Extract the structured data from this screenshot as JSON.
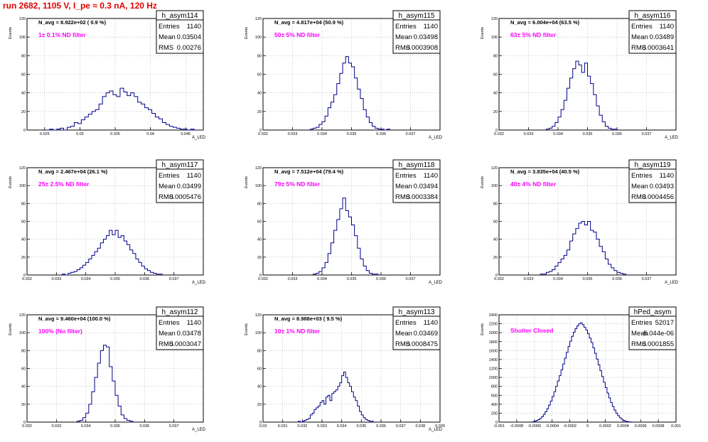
{
  "page": {
    "run_title": "run 2682,  1105 V, I_pe ≈ 0.3 nA, 120 Hz"
  },
  "colors": {
    "histogram_line": "#00008b",
    "label_magenta": "#ff00ff",
    "run_title_red": "#e00000",
    "grid": "#aaaaaa"
  },
  "chart_data": [
    {
      "type": "bar",
      "name": "h_asym114",
      "ylabel": "Events",
      "xlabel": "A_LED",
      "stats": {
        "entries_label": "Entries",
        "entries": "1140",
        "mean_label": "Mean",
        "mean": "0.03504",
        "rms_label": "RMS",
        "rms": "0.00276"
      },
      "n_avg_text": "N_avg = 8.922e+02 ( 0.9 %)",
      "filter_label": "1± 0.1% ND filter",
      "grid": true,
      "xlim": [
        0.0225,
        0.0475
      ],
      "ylim": [
        0,
        120
      ],
      "xticks": [
        0.025,
        0.03,
        0.035,
        0.04,
        0.045
      ],
      "xtick_labels": [
        "0.025",
        "0.03",
        "0.035",
        "0.04",
        "0.045"
      ],
      "yticks": [
        0,
        20,
        40,
        60,
        80,
        100,
        120
      ],
      "ytick_labels": [
        "0",
        "20",
        "40",
        "60",
        "80",
        "100",
        "120"
      ],
      "bins": {
        "start": 0.0252,
        "width": 0.0005,
        "values": [
          0,
          1,
          0,
          1,
          2,
          0,
          3,
          4,
          8,
          7,
          11,
          14,
          17,
          20,
          22,
          28,
          36,
          40,
          42,
          38,
          36,
          45,
          41,
          37,
          40,
          36,
          30,
          28,
          24,
          22,
          18,
          14,
          12,
          8,
          6,
          4,
          3,
          2,
          1,
          1,
          0,
          1,
          0
        ]
      }
    },
    {
      "type": "bar",
      "name": "h_asym115",
      "ylabel": "Events",
      "xlabel": "A_LED",
      "stats": {
        "entries_label": "Entries",
        "entries": "1140",
        "mean_label": "Mean",
        "mean": "0.03498",
        "rms_label": "RMS",
        "rms": "0.0003908"
      },
      "n_avg_text": "N_avg = 4.817e+04 (50.9 %)",
      "filter_label": "50± 5% ND filter",
      "grid": true,
      "xlim": [
        0.032,
        0.038
      ],
      "ylim": [
        0,
        120
      ],
      "xticks": [
        0.032,
        0.033,
        0.034,
        0.035,
        0.036,
        0.037
      ],
      "xtick_labels": [
        "0.032",
        "0.033",
        "0.034",
        "0.035",
        "0.036",
        "0.037"
      ],
      "yticks": [
        0,
        20,
        40,
        60,
        80,
        100,
        120
      ],
      "ytick_labels": [
        "0",
        "20",
        "40",
        "60",
        "80",
        "100",
        "120"
      ],
      "bins": {
        "start": 0.0336,
        "width": 0.0001,
        "values": [
          1,
          2,
          3,
          6,
          9,
          15,
          24,
          30,
          38,
          50,
          61,
          72,
          79,
          72,
          68,
          56,
          44,
          34,
          22,
          14,
          8,
          4,
          2,
          1,
          1,
          0,
          1
        ]
      }
    },
    {
      "type": "bar",
      "name": "h_asym116",
      "ylabel": "Events",
      "xlabel": "A_LED",
      "stats": {
        "entries_label": "Entries",
        "entries": "1140",
        "mean_label": "Mean",
        "mean": "0.03489",
        "rms_label": "RMS",
        "rms": "0.0003641"
      },
      "n_avg_text": "N_avg = 6.004e+04 (63.5 %)",
      "filter_label": "63± 5% ND filter",
      "grid": true,
      "xlim": [
        0.032,
        0.038
      ],
      "ylim": [
        0,
        120
      ],
      "xticks": [
        0.032,
        0.033,
        0.034,
        0.035,
        0.036,
        0.037
      ],
      "xtick_labels": [
        "0.032",
        "0.033",
        "0.034",
        "0.035",
        "0.036",
        "0.037"
      ],
      "yticks": [
        0,
        20,
        40,
        60,
        80,
        100,
        120
      ],
      "ytick_labels": [
        "0",
        "20",
        "40",
        "60",
        "80",
        "100",
        "120"
      ],
      "bins": {
        "start": 0.0336,
        "width": 0.0001,
        "values": [
          1,
          2,
          4,
          8,
          14,
          22,
          32,
          45,
          56,
          66,
          74,
          70,
          62,
          72,
          58,
          50,
          38,
          26,
          16,
          9,
          4,
          2,
          1,
          1
        ]
      }
    },
    {
      "type": "bar",
      "name": "h_asym117",
      "ylabel": "Events",
      "xlabel": "A_LED",
      "stats": {
        "entries_label": "Entries",
        "entries": "1140",
        "mean_label": "Mean",
        "mean": "0.03499",
        "rms_label": "RMS",
        "rms": "0.0005476"
      },
      "n_avg_text": "N_avg = 2.467e+04 (26.1 %)",
      "filter_label": "25± 2.5% ND filter",
      "grid": true,
      "xlim": [
        0.032,
        0.038
      ],
      "ylim": [
        0,
        120
      ],
      "xticks": [
        0.032,
        0.033,
        0.034,
        0.035,
        0.036,
        0.037
      ],
      "xtick_labels": [
        "0.032",
        "0.033",
        "0.034",
        "0.035",
        "0.036",
        "0.037"
      ],
      "yticks": [
        0,
        20,
        40,
        60,
        80,
        100,
        120
      ],
      "ytick_labels": [
        "0",
        "20",
        "40",
        "60",
        "80",
        "100",
        "120"
      ],
      "bins": {
        "start": 0.0332,
        "width": 0.0001,
        "values": [
          1,
          0,
          2,
          3,
          4,
          6,
          8,
          11,
          14,
          18,
          22,
          26,
          30,
          36,
          40,
          44,
          50,
          45,
          50,
          42,
          44,
          38,
          34,
          28,
          24,
          18,
          14,
          10,
          7,
          5,
          3,
          2,
          1,
          1
        ]
      }
    },
    {
      "type": "bar",
      "name": "h_asym118",
      "ylabel": "Events",
      "xlabel": "A_LED",
      "stats": {
        "entries_label": "Entries",
        "entries": "1140",
        "mean_label": "Mean",
        "mean": "0.03494",
        "rms_label": "RMS",
        "rms": "0.0003384"
      },
      "n_avg_text": "N_avg = 7.512e+04 (79.4 %)",
      "filter_label": "79± 5% ND filter",
      "grid": true,
      "xlim": [
        0.032,
        0.038
      ],
      "ylim": [
        0,
        120
      ],
      "xticks": [
        0.032,
        0.033,
        0.034,
        0.035,
        0.036,
        0.037
      ],
      "xtick_labels": [
        "0.032",
        "0.033",
        "0.034",
        "0.035",
        "0.036",
        "0.037"
      ],
      "yticks": [
        0,
        20,
        40,
        60,
        80,
        100,
        120
      ],
      "ytick_labels": [
        "0",
        "20",
        "40",
        "60",
        "80",
        "100",
        "120"
      ],
      "bins": {
        "start": 0.0337,
        "width": 0.0001,
        "values": [
          1,
          2,
          4,
          8,
          14,
          24,
          36,
          50,
          62,
          74,
          86,
          72,
          65,
          56,
          44,
          30,
          18,
          10,
          5,
          2,
          1,
          1
        ]
      }
    },
    {
      "type": "bar",
      "name": "h_asym119",
      "ylabel": "Events",
      "xlabel": "A_LED",
      "stats": {
        "entries_label": "Entries",
        "entries": "1140",
        "mean_label": "Mean",
        "mean": "0.03493",
        "rms_label": "RMS",
        "rms": "0.0004456"
      },
      "n_avg_text": "N_avg = 3.835e+04 (40.5 %)",
      "filter_label": "40± 4% ND filter",
      "grid": true,
      "xlim": [
        0.032,
        0.038
      ],
      "ylim": [
        0,
        120
      ],
      "xticks": [
        0.032,
        0.033,
        0.034,
        0.035,
        0.036,
        0.037
      ],
      "xtick_labels": [
        "0.032",
        "0.033",
        "0.034",
        "0.035",
        "0.036",
        "0.037"
      ],
      "yticks": [
        0,
        20,
        40,
        60,
        80,
        100,
        120
      ],
      "ytick_labels": [
        "0",
        "20",
        "40",
        "60",
        "80",
        "100",
        "120"
      ],
      "bins": {
        "start": 0.0334,
        "width": 0.0001,
        "values": [
          1,
          1,
          3,
          4,
          6,
          10,
          14,
          18,
          22,
          28,
          38,
          46,
          52,
          58,
          60,
          56,
          60,
          50,
          48,
          40,
          32,
          26,
          18,
          12,
          8,
          5,
          3,
          2,
          1
        ]
      }
    },
    {
      "type": "bar",
      "name": "h_asym112",
      "ylabel": "Events",
      "xlabel": "A_LED",
      "stats": {
        "entries_label": "Entries",
        "entries": "1140",
        "mean_label": "Mean",
        "mean": "0.03478",
        "rms_label": "RMS",
        "rms": "0.0003047"
      },
      "n_avg_text": "N_avg = 9.460e+04 (100.0 %)",
      "filter_label": "100% (No filter)",
      "grid": true,
      "xlim": [
        0.032,
        0.038
      ],
      "ylim": [
        0,
        120
      ],
      "xticks": [
        0.032,
        0.033,
        0.034,
        0.035,
        0.036,
        0.037
      ],
      "xtick_labels": [
        "0.032",
        "0.033",
        "0.034",
        "0.035",
        "0.036",
        "0.037"
      ],
      "yticks": [
        0,
        20,
        40,
        60,
        80,
        100,
        120
      ],
      "ytick_labels": [
        "0",
        "20",
        "40",
        "60",
        "80",
        "100",
        "120"
      ],
      "bins": {
        "start": 0.0337,
        "width": 0.0001,
        "values": [
          1,
          2,
          5,
          10,
          20,
          34,
          50,
          66,
          80,
          86,
          84,
          62,
          46,
          30,
          18,
          8,
          4,
          2,
          1
        ]
      }
    },
    {
      "type": "bar",
      "name": "h_asym113",
      "ylabel": "Events",
      "xlabel": "A_LED",
      "stats": {
        "entries_label": "Entries",
        "entries": "1140",
        "mean_label": "Mean",
        "mean": "0.03469",
        "rms_label": "RMS",
        "rms": "0.0008475"
      },
      "n_avg_text": "N_avg = 8.988e+03 ( 9.5 %)",
      "filter_label": "10± 1% ND filter",
      "grid": true,
      "xlim": [
        0.03,
        0.039
      ],
      "ylim": [
        0,
        120
      ],
      "xticks": [
        0.03,
        0.031,
        0.032,
        0.033,
        0.034,
        0.035,
        0.036,
        0.037,
        0.038,
        0.039
      ],
      "xtick_labels": [
        "0.03",
        "0.031",
        "0.032",
        "0.033",
        "0.034",
        "0.035",
        "0.036",
        "0.037",
        "0.038",
        "0.039"
      ],
      "yticks": [
        0,
        20,
        40,
        60,
        80,
        100,
        120
      ],
      "ytick_labels": [
        "0",
        "20",
        "40",
        "60",
        "80",
        "100",
        "120"
      ],
      "bins": {
        "start": 0.0318,
        "width": 0.0001,
        "values": [
          1,
          0,
          1,
          2,
          3,
          4,
          8,
          10,
          14,
          16,
          18,
          22,
          24,
          20,
          28,
          30,
          24,
          32,
          34,
          36,
          40,
          44,
          52,
          56,
          50,
          44,
          40,
          34,
          28,
          24,
          18,
          12,
          8,
          5,
          3,
          2,
          1,
          1
        ]
      }
    },
    {
      "type": "bar",
      "name": "hPed_asym",
      "ylabel": "Events",
      "xlabel": "",
      "stats": {
        "entries_label": "Entries",
        "entries": "52017",
        "mean_label": "Mean",
        "mean": "-5.044e-06",
        "rms_label": "RMS",
        "rms": "0.0001855"
      },
      "n_avg_text": "",
      "filter_label": "Shutter Closed",
      "grid": true,
      "xlim": [
        -0.001,
        0.001
      ],
      "ylim": [
        0,
        2400
      ],
      "xticks": [
        -0.001,
        -0.0008,
        -0.0006,
        -0.0004,
        -0.0002,
        0,
        0.0002,
        0.0004,
        0.0006,
        0.0008,
        0.001
      ],
      "xtick_labels": [
        "-0.001",
        "-0.0008",
        "-0.0006",
        "-0.0004",
        "-0.0002",
        "0",
        "0.0002",
        "0.0004",
        "0.0006",
        "0.0008",
        "0.001"
      ],
      "yticks": [
        0,
        200,
        400,
        600,
        800,
        1000,
        1200,
        1400,
        1600,
        1800,
        2000,
        2200,
        2400
      ],
      "ytick_labels": [
        "0",
        "200",
        "400",
        "600",
        "800",
        "1000",
        "1200",
        "1400",
        "1600",
        "1800",
        "2000",
        "2200",
        "2400"
      ],
      "bins": {
        "start": -0.00062,
        "width": 2e-05,
        "values": [
          10,
          20,
          35,
          55,
          80,
          120,
          170,
          230,
          300,
          380,
          470,
          570,
          680,
          800,
          920,
          1040,
          1170,
          1300,
          1430,
          1560,
          1690,
          1810,
          1920,
          2010,
          2090,
          2150,
          2200,
          2220,
          2180,
          2120,
          2060,
          1980,
          1880,
          1780,
          1660,
          1540,
          1410,
          1280,
          1150,
          1020,
          890,
          770,
          650,
          540,
          440,
          350,
          270,
          200,
          145,
          100,
          65,
          40,
          22,
          12,
          6,
          3
        ]
      }
    }
  ]
}
